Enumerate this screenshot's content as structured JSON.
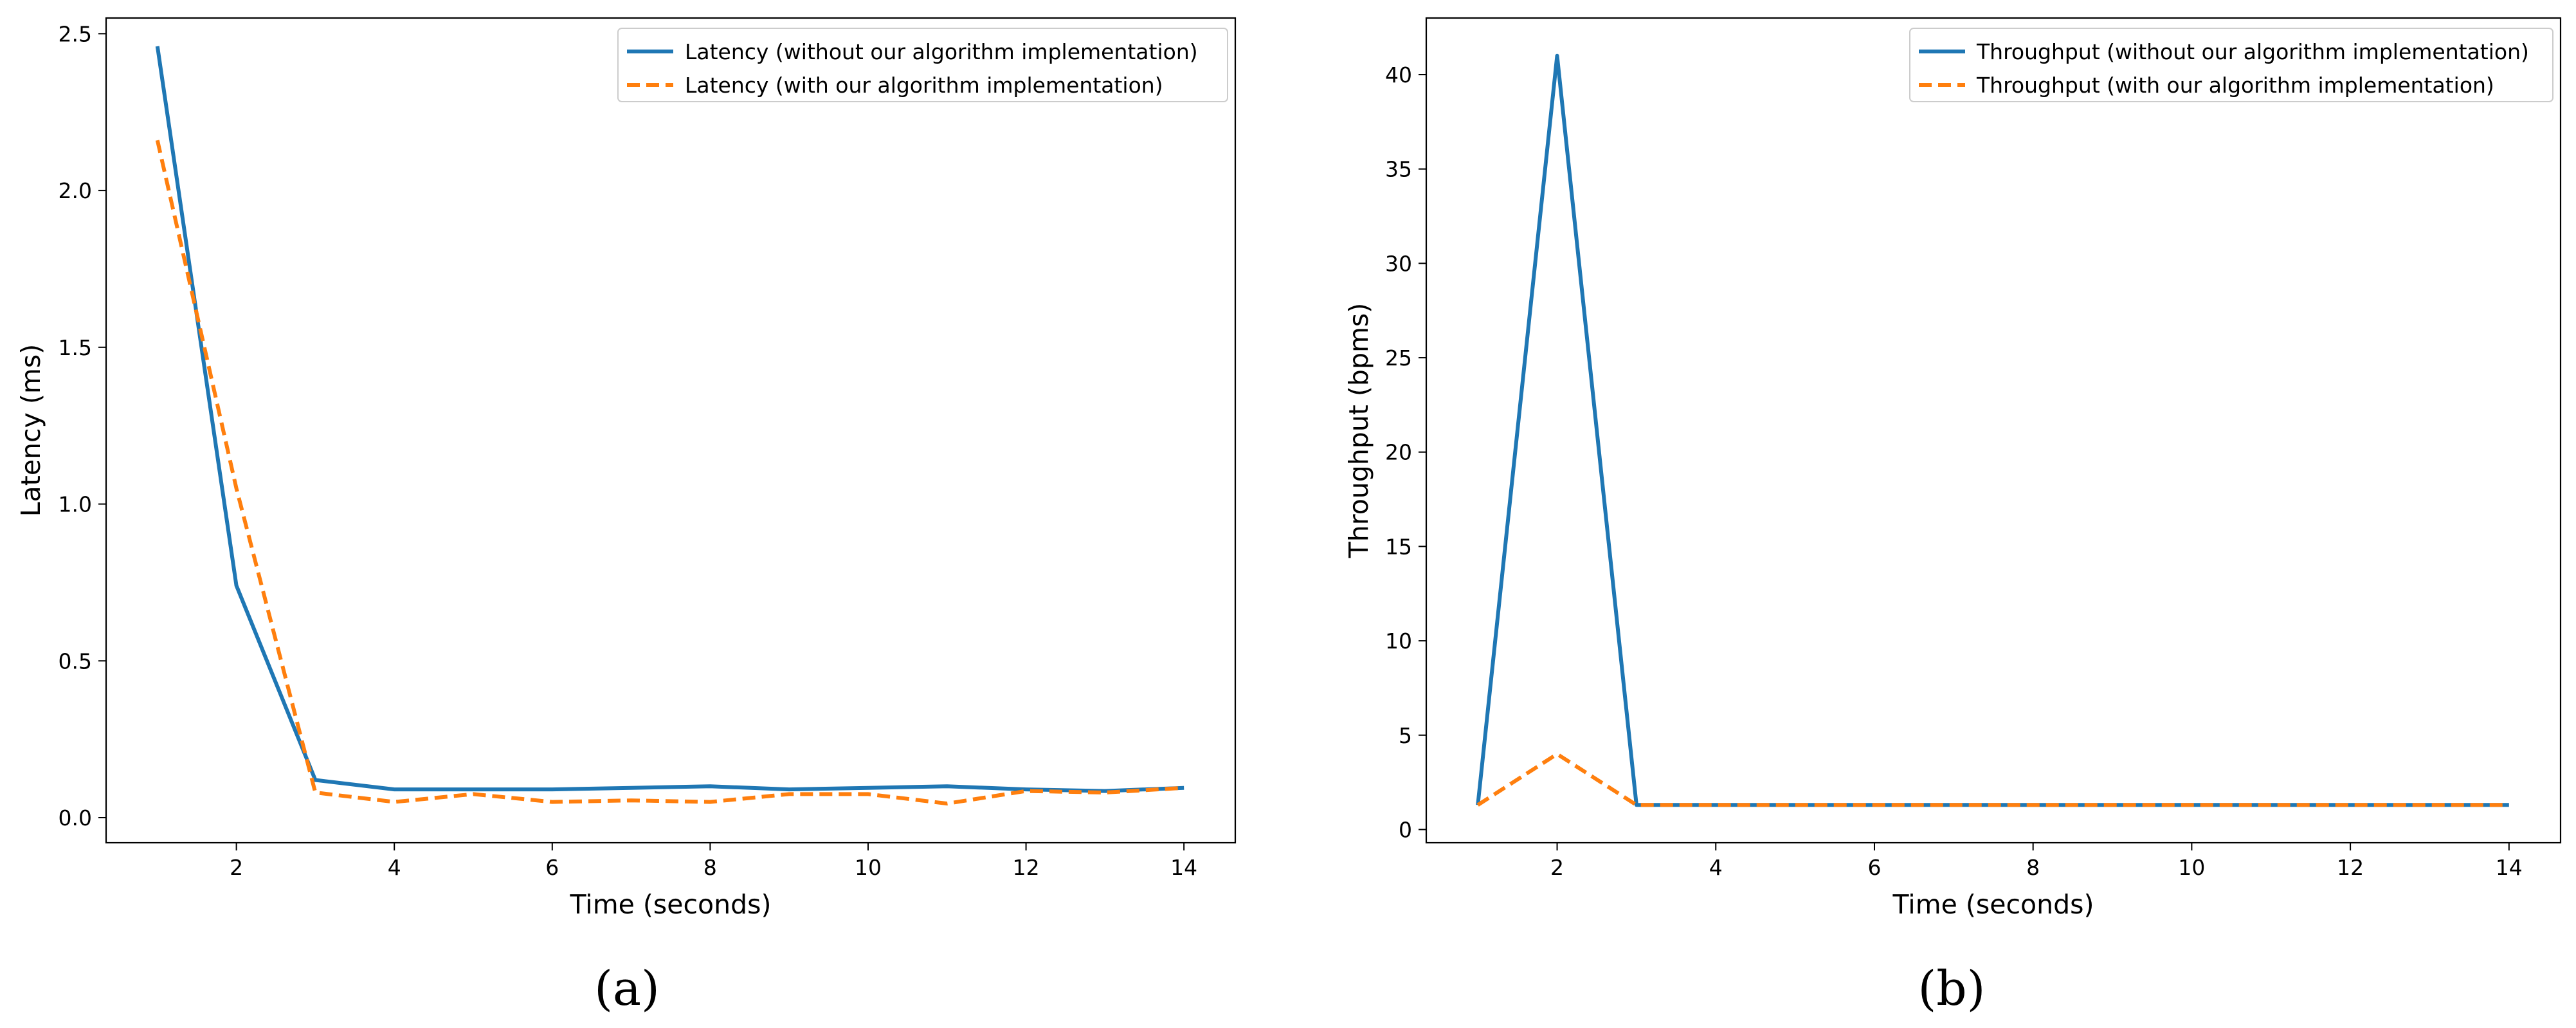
{
  "colors": {
    "series_without": "#1f77b4",
    "series_with": "#ff7f0e"
  },
  "chart_data": [
    {
      "type": "line",
      "panel_label": "(a)",
      "title": "",
      "xlabel": "Time (seconds)",
      "ylabel": "Latency (ms)",
      "xlim": [
        0.35,
        14.65
      ],
      "ylim": [
        -0.08,
        2.55
      ],
      "xticks": [
        2,
        4,
        6,
        8,
        10,
        12,
        14
      ],
      "yticks": [
        0.0,
        0.5,
        1.0,
        1.5,
        2.0,
        2.5
      ],
      "ytick_labels": [
        "0.0",
        "0.5",
        "1.0",
        "1.5",
        "2.0",
        "2.5"
      ],
      "grid": false,
      "legend": "top-right",
      "x": [
        1,
        2,
        3,
        4,
        5,
        6,
        7,
        8,
        9,
        10,
        11,
        12,
        13,
        14
      ],
      "series": [
        {
          "name": "Latency (without our algorithm implementation)",
          "style": "solid",
          "values": [
            2.46,
            0.74,
            0.12,
            0.09,
            0.09,
            0.09,
            0.095,
            0.1,
            0.09,
            0.095,
            0.1,
            0.09,
            0.085,
            0.095
          ]
        },
        {
          "name": "Latency (with our algorithm implementation)",
          "style": "dashed",
          "values": [
            2.16,
            1.05,
            0.08,
            0.05,
            0.075,
            0.05,
            0.055,
            0.05,
            0.075,
            0.075,
            0.045,
            0.085,
            0.08,
            0.095
          ]
        }
      ]
    },
    {
      "type": "line",
      "panel_label": "(b)",
      "title": "",
      "xlabel": "Time (seconds)",
      "ylabel": "Throughput (bpms)",
      "xlim": [
        0.35,
        14.65
      ],
      "ylim": [
        -0.7,
        43.0
      ],
      "xticks": [
        2,
        4,
        6,
        8,
        10,
        12,
        14
      ],
      "yticks": [
        0,
        5,
        10,
        15,
        20,
        25,
        30,
        35,
        40
      ],
      "ytick_labels": [
        "0",
        "5",
        "10",
        "15",
        "20",
        "25",
        "30",
        "35",
        "40"
      ],
      "grid": false,
      "legend": "top-right",
      "x": [
        1,
        2,
        3,
        4,
        5,
        6,
        7,
        8,
        9,
        10,
        11,
        12,
        13,
        14
      ],
      "series": [
        {
          "name": "Throughput (without our algorithm implementation)",
          "style": "solid",
          "values": [
            1.3,
            41.0,
            1.3,
            1.3,
            1.3,
            1.3,
            1.3,
            1.3,
            1.3,
            1.3,
            1.3,
            1.3,
            1.3,
            1.3
          ]
        },
        {
          "name": "Throughput (with our algorithm implementation)",
          "style": "dashed",
          "values": [
            1.3,
            4.0,
            1.3,
            1.3,
            1.3,
            1.3,
            1.3,
            1.3,
            1.3,
            1.3,
            1.3,
            1.3,
            1.3,
            1.3
          ]
        }
      ]
    }
  ]
}
